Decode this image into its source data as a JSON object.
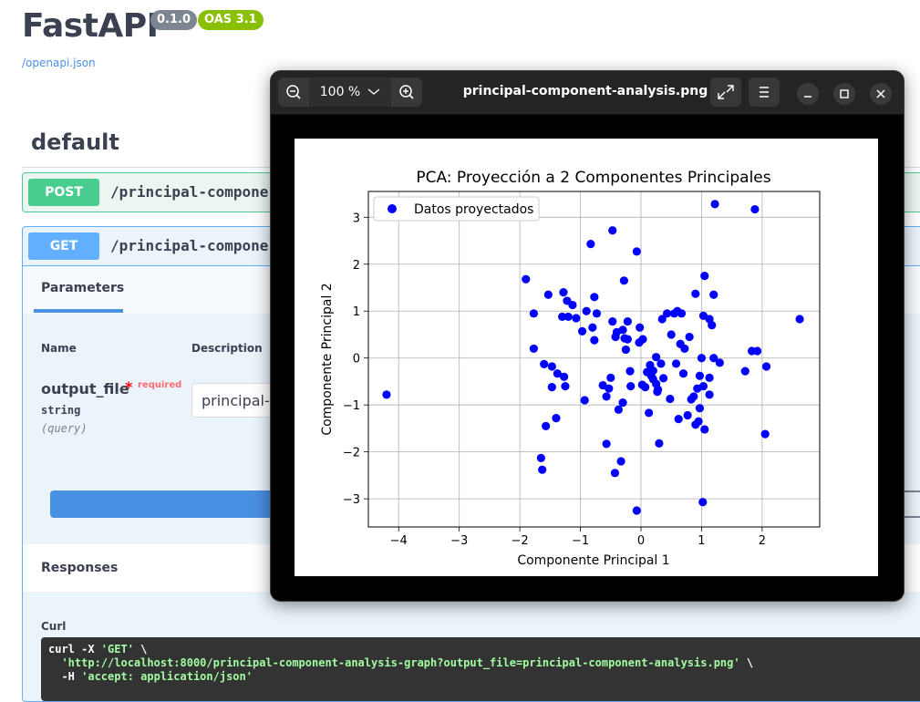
{
  "app": {
    "title": "FastAPI",
    "version": "0.1.0",
    "oas_badge": "OAS 3.1",
    "spec_link": "/openapi.json"
  },
  "tag": {
    "name": "default"
  },
  "operations": [
    {
      "method": "POST",
      "path": "/principal-componer"
    },
    {
      "method": "GET",
      "path": "/principal-componer"
    }
  ],
  "get_panel": {
    "tab_label": "Parameters",
    "col_name": "Name",
    "col_description": "Description",
    "param": {
      "name": "output_file",
      "required_star": "*",
      "required_label": "required",
      "type": "string",
      "location": "(query)",
      "value": "principal-c"
    },
    "responses_label": "Responses",
    "curl_label": "Curl",
    "curl_line1_cmd": "curl -X ",
    "curl_line1_method": "'GET'",
    "curl_line1_tail": " \\",
    "curl_line2_url": "'http://localhost:8000/principal-component-analysis-graph?output_file=principal-component-analysis.png'",
    "curl_line2_tail": " \\",
    "curl_line3_flag": "  -H ",
    "curl_line3_header": "'accept: application/json'"
  },
  "viewer": {
    "zoom_level": "100 %",
    "file_name": "principal-component-analysis.png",
    "icons": {
      "zoom_out": "zoom-out-icon",
      "zoom_in": "zoom-in-icon",
      "zoom_menu": "chevron-down-icon",
      "fullscreen": "fullscreen-icon",
      "menu": "hamburger-menu-icon",
      "minimize": "minimize-icon",
      "maximize": "maximize-icon",
      "close": "close-icon"
    }
  },
  "chart_data": {
    "type": "scatter",
    "title": "PCA: Proyección a 2 Componentes Principales",
    "xlabel": "Componente Principal 1",
    "ylabel": "Componente Principal 2",
    "xlim": [
      -4.5,
      2.95
    ],
    "ylim": [
      -3.6,
      3.55
    ],
    "xticks": [
      -4,
      -3,
      -2,
      -1,
      0,
      1,
      2
    ],
    "xtick_labels": [
      "−4",
      "−3",
      "−2",
      "−1",
      "0",
      "1",
      "2"
    ],
    "yticks": [
      -3,
      -2,
      -1,
      0,
      1,
      2,
      3
    ],
    "ytick_labels": [
      "−3",
      "−2",
      "−1",
      "0",
      "1",
      "2",
      "3"
    ],
    "grid": true,
    "legend_position": "upper left",
    "series": [
      {
        "name": "Datos proyectados",
        "color": "#0000ff",
        "points": [
          [
            -4.2,
            -0.78
          ],
          [
            -1.9,
            1.68
          ],
          [
            -1.77,
            0.95
          ],
          [
            -1.77,
            0.2
          ],
          [
            -1.65,
            -2.13
          ],
          [
            -1.63,
            -2.38
          ],
          [
            -1.6,
            -0.13
          ],
          [
            -1.57,
            -1.45
          ],
          [
            -1.53,
            1.35
          ],
          [
            -1.47,
            -0.18
          ],
          [
            -1.47,
            -0.62
          ],
          [
            -1.4,
            -1.28
          ],
          [
            -1.38,
            -0.33
          ],
          [
            -1.3,
            0.88
          ],
          [
            -1.28,
            1.4
          ],
          [
            -1.27,
            -0.4
          ],
          [
            -1.25,
            -0.6
          ],
          [
            -1.22,
            1.22
          ],
          [
            -1.2,
            0.88
          ],
          [
            -1.13,
            1.13
          ],
          [
            -1.07,
            0.85
          ],
          [
            -0.97,
            0.57
          ],
          [
            -0.93,
            -0.9
          ],
          [
            -0.9,
            1.0
          ],
          [
            -0.83,
            2.43
          ],
          [
            -0.8,
            0.65
          ],
          [
            -0.77,
            0.38
          ],
          [
            -0.77,
            1.3
          ],
          [
            -0.73,
            0.95
          ],
          [
            -0.63,
            -0.58
          ],
          [
            -0.57,
            -1.83
          ],
          [
            -0.57,
            -0.82
          ],
          [
            -0.53,
            -0.65
          ],
          [
            -0.5,
            -0.42
          ],
          [
            -0.47,
            2.72
          ],
          [
            -0.47,
            0.78
          ],
          [
            -0.43,
            -2.45
          ],
          [
            -0.42,
            0.45
          ],
          [
            -0.4,
            0.55
          ],
          [
            -0.37,
            -1.1
          ],
          [
            -0.33,
            -2.2
          ],
          [
            -0.3,
            0.6
          ],
          [
            -0.3,
            -0.95
          ],
          [
            -0.28,
            1.65
          ],
          [
            -0.27,
            0.42
          ],
          [
            -0.25,
            0.18
          ],
          [
            -0.22,
            0.78
          ],
          [
            -0.22,
            0.4
          ],
          [
            -0.18,
            -0.28
          ],
          [
            -0.17,
            -0.6
          ],
          [
            -0.07,
            2.27
          ],
          [
            -0.07,
            -3.25
          ],
          [
            -0.03,
            0.33
          ],
          [
            -0.02,
            0.65
          ],
          [
            0.02,
            -0.57
          ],
          [
            0.03,
            0.4
          ],
          [
            0.07,
            -0.62
          ],
          [
            0.1,
            -0.3
          ],
          [
            0.13,
            -1.17
          ],
          [
            0.15,
            -0.15
          ],
          [
            0.17,
            -0.38
          ],
          [
            0.2,
            -0.45
          ],
          [
            0.2,
            -0.27
          ],
          [
            0.25,
            0.02
          ],
          [
            0.25,
            -0.55
          ],
          [
            0.27,
            -0.72
          ],
          [
            0.28,
            -0.67
          ],
          [
            0.3,
            -1.82
          ],
          [
            0.33,
            -0.12
          ],
          [
            0.35,
            0.83
          ],
          [
            0.37,
            -0.43
          ],
          [
            0.43,
            0.95
          ],
          [
            0.48,
            -0.87
          ],
          [
            0.5,
            0.5
          ],
          [
            0.55,
            0.95
          ],
          [
            0.58,
            -0.12
          ],
          [
            0.6,
            1.0
          ],
          [
            0.62,
            -1.3
          ],
          [
            0.65,
            0.3
          ],
          [
            0.67,
            0.95
          ],
          [
            0.7,
            -0.33
          ],
          [
            0.72,
            0.2
          ],
          [
            0.77,
            -1.22
          ],
          [
            0.8,
            0.45
          ],
          [
            0.83,
            -0.88
          ],
          [
            0.87,
            -0.82
          ],
          [
            0.9,
            1.37
          ],
          [
            0.9,
            -1.42
          ],
          [
            0.93,
            -0.65
          ],
          [
            0.95,
            -1.35
          ],
          [
            0.97,
            -1.07
          ],
          [
            0.97,
            -0.38
          ],
          [
            1.0,
            0.0
          ],
          [
            1.02,
            -3.07
          ],
          [
            1.03,
            0.9
          ],
          [
            1.03,
            -0.6
          ],
          [
            1.05,
            1.75
          ],
          [
            1.05,
            -1.52
          ],
          [
            1.13,
            0.83
          ],
          [
            1.13,
            -0.42
          ],
          [
            1.13,
            -0.78
          ],
          [
            1.17,
            0.7
          ],
          [
            1.2,
            1.35
          ],
          [
            1.2,
            0.0
          ],
          [
            1.22,
            3.28
          ],
          [
            1.3,
            -0.1
          ],
          [
            1.72,
            -0.28
          ],
          [
            1.83,
            0.15
          ],
          [
            1.88,
            3.17
          ],
          [
            1.92,
            0.15
          ],
          [
            2.05,
            -1.62
          ],
          [
            2.07,
            -0.18
          ],
          [
            2.62,
            0.83
          ]
        ]
      }
    ]
  }
}
